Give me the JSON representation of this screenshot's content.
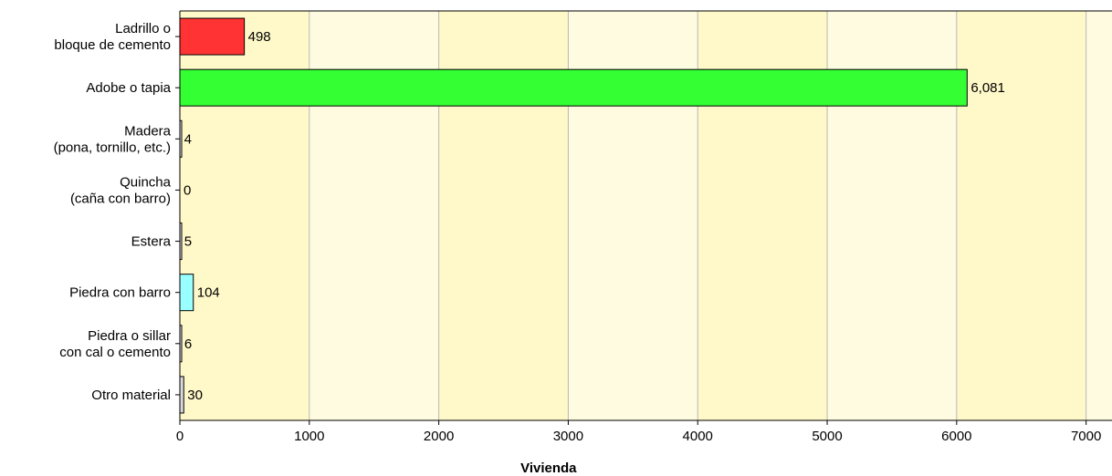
{
  "chart_data": {
    "type": "bar",
    "orientation": "horizontal",
    "categories": [
      [
        "Ladrillo o",
        "bloque de cemento"
      ],
      [
        "Adobe o tapia"
      ],
      [
        "Madera",
        "(pona, tornillo, etc.)"
      ],
      [
        "Quincha",
        "(caña con barro)"
      ],
      [
        "Estera"
      ],
      [
        "Piedra con barro"
      ],
      [
        "Piedra o sillar",
        "con cal o cemento"
      ],
      [
        "Otro material"
      ]
    ],
    "values": [
      498,
      6081,
      4,
      0,
      5,
      104,
      6,
      30
    ],
    "value_labels": [
      "498",
      "6,081",
      "4",
      "0",
      "5",
      "104",
      "6",
      "30"
    ],
    "bar_colors": [
      "#ff3333",
      "#33ff33",
      "#e8e8e8",
      "#e8e8e8",
      "#e8e8e8",
      "#99ffff",
      "#e8e8e8",
      "#d9d9d9"
    ],
    "xlabel": "Vivienda",
    "ylabel": "",
    "xlim": [
      0,
      7200
    ],
    "xticks": [
      0,
      1000,
      2000,
      3000,
      4000,
      5000,
      6000,
      7000
    ],
    "xtick_labels": [
      "0",
      "1000",
      "2000",
      "3000",
      "4000",
      "5000",
      "6000",
      "7000"
    ],
    "grid": "vertical",
    "legend": "none",
    "background_bands": [
      "#fff8c8",
      "#fffbe0"
    ]
  }
}
